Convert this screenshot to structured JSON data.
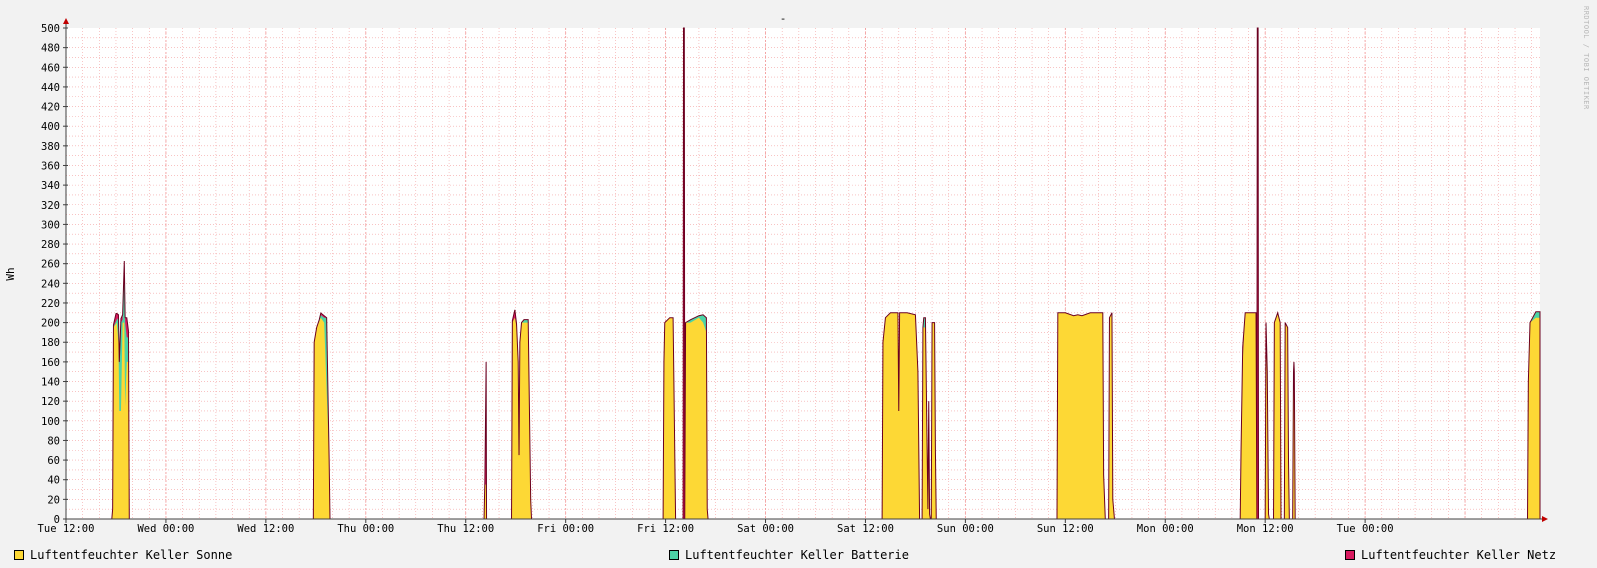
{
  "chart_data": {
    "type": "area",
    "title": "-",
    "ylabel": "Wh",
    "ylim": [
      0,
      500
    ],
    "yticks": [
      0,
      20,
      40,
      60,
      80,
      100,
      120,
      140,
      160,
      180,
      200,
      220,
      240,
      260,
      280,
      300,
      320,
      340,
      360,
      380,
      400,
      420,
      440,
      460,
      480,
      500
    ],
    "x_range_hours": [
      0,
      177
    ],
    "x_tick_labels": [
      "Tue 12:00",
      "Wed 00:00",
      "Wed 12:00",
      "Thu 00:00",
      "Thu 12:00",
      "Fri 00:00",
      "Fri 12:00",
      "Sat 00:00",
      "Sat 12:00",
      "Sun 00:00",
      "Sun 12:00",
      "Mon 00:00",
      "Mon 12:00",
      "Tue 00:00"
    ],
    "grid": true,
    "legend_position": "bottom",
    "stacked": true,
    "series": [
      {
        "name": "Luftentfeuchter Keller Sonne",
        "color": "#fdd835",
        "points": [
          [
            5.5,
            0
          ],
          [
            5.6,
            10
          ],
          [
            5.7,
            195
          ],
          [
            6.1,
            200
          ],
          [
            6.3,
            180
          ],
          [
            6.4,
            110
          ],
          [
            6.6,
            110
          ],
          [
            6.8,
            200
          ],
          [
            7.0,
            200
          ],
          [
            7.1,
            115
          ],
          [
            7.3,
            160
          ],
          [
            7.5,
            160
          ],
          [
            7.6,
            0
          ],
          [
            29.7,
            0
          ],
          [
            29.8,
            180
          ],
          [
            30.1,
            195
          ],
          [
            30.6,
            205
          ],
          [
            31.0,
            200
          ],
          [
            31.3,
            130
          ],
          [
            31.6,
            60
          ],
          [
            31.7,
            0
          ],
          [
            50.2,
            0
          ],
          [
            50.3,
            35
          ],
          [
            50.45,
            35
          ],
          [
            50.5,
            0
          ],
          [
            53.5,
            0
          ],
          [
            53.6,
            200
          ],
          [
            53.9,
            205
          ],
          [
            54.1,
            195
          ],
          [
            54.3,
            160
          ],
          [
            54.4,
            65
          ],
          [
            54.5,
            180
          ],
          [
            54.7,
            200
          ],
          [
            55.5,
            200
          ],
          [
            55.8,
            20
          ],
          [
            55.9,
            0
          ],
          [
            71.7,
            0
          ],
          [
            71.8,
            160
          ],
          [
            71.9,
            200
          ],
          [
            72.5,
            205
          ],
          [
            72.9,
            205
          ],
          [
            73.2,
            0
          ],
          [
            74.3,
            0
          ],
          [
            74.4,
            200
          ],
          [
            75.0,
            200
          ],
          [
            76.0,
            205
          ],
          [
            76.5,
            200
          ],
          [
            76.9,
            190
          ],
          [
            77.0,
            10
          ],
          [
            77.1,
            0
          ],
          [
            98.0,
            0
          ],
          [
            98.1,
            180
          ],
          [
            98.4,
            205
          ],
          [
            99.0,
            210
          ],
          [
            99.9,
            210
          ],
          [
            100.0,
            110
          ],
          [
            100.1,
            210
          ],
          [
            101.0,
            210
          ],
          [
            102.0,
            208
          ],
          [
            102.3,
            150
          ],
          [
            102.5,
            0
          ],
          [
            102.8,
            0
          ],
          [
            102.9,
            195
          ],
          [
            103.2,
            195
          ],
          [
            103.5,
            10
          ],
          [
            103.6,
            120
          ],
          [
            103.7,
            5
          ],
          [
            103.8,
            0
          ],
          [
            103.9,
            0
          ],
          [
            104.0,
            200
          ],
          [
            104.3,
            200
          ],
          [
            104.4,
            70
          ],
          [
            104.5,
            0
          ],
          [
            119.0,
            0
          ],
          [
            119.1,
            210
          ],
          [
            120.0,
            210
          ],
          [
            121.0,
            207
          ],
          [
            121.5,
            208
          ],
          [
            122.0,
            207
          ],
          [
            123.0,
            210
          ],
          [
            124.0,
            210
          ],
          [
            124.5,
            210
          ],
          [
            124.6,
            45
          ],
          [
            124.8,
            0
          ],
          [
            125.2,
            0
          ],
          [
            125.3,
            205
          ],
          [
            125.6,
            210
          ],
          [
            125.7,
            20
          ],
          [
            125.9,
            0
          ],
          [
            141.0,
            0
          ],
          [
            141.1,
            70
          ],
          [
            141.3,
            160
          ],
          [
            141.6,
            210
          ],
          [
            142.5,
            210
          ],
          [
            142.9,
            210
          ],
          [
            143.0,
            0
          ],
          [
            144.0,
            0
          ],
          [
            144.1,
            200
          ],
          [
            144.25,
            150
          ],
          [
            144.4,
            5
          ],
          [
            144.5,
            0
          ],
          [
            145.0,
            0
          ],
          [
            145.1,
            200
          ],
          [
            145.5,
            210
          ],
          [
            145.8,
            200
          ],
          [
            145.9,
            0
          ],
          [
            146.3,
            0
          ],
          [
            146.4,
            200
          ],
          [
            146.7,
            195
          ],
          [
            146.8,
            60
          ],
          [
            146.9,
            0
          ],
          [
            147.3,
            0
          ],
          [
            147.4,
            150
          ],
          [
            147.5,
            140
          ],
          [
            147.6,
            0
          ],
          [
            175.5,
            0
          ],
          [
            175.6,
            140
          ],
          [
            175.8,
            200
          ],
          [
            176.5,
            205
          ],
          [
            177,
            205
          ]
        ]
      },
      {
        "name": "Luftentfeuchter Keller Batterie",
        "color": "#4cd3a6",
        "points": [
          [
            5.6,
            0
          ],
          [
            6.1,
            3
          ],
          [
            6.3,
            25
          ],
          [
            6.6,
            90
          ],
          [
            6.8,
            3
          ],
          [
            7.1,
            85
          ],
          [
            7.3,
            25
          ],
          [
            7.5,
            25
          ],
          [
            7.6,
            0
          ],
          [
            30.1,
            0
          ],
          [
            31.0,
            5
          ],
          [
            31.3,
            75
          ],
          [
            31.6,
            0
          ],
          [
            54.7,
            0
          ],
          [
            55.0,
            3
          ],
          [
            55.5,
            3
          ],
          [
            55.8,
            0
          ],
          [
            74.4,
            0
          ],
          [
            75.0,
            3
          ],
          [
            76.0,
            2
          ],
          [
            76.5,
            8
          ],
          [
            76.9,
            15
          ],
          [
            77.0,
            0
          ],
          [
            102.9,
            0
          ],
          [
            103.0,
            10
          ],
          [
            103.2,
            10
          ],
          [
            103.5,
            0
          ],
          [
            175.8,
            0
          ],
          [
            176.5,
            6
          ],
          [
            177,
            6
          ]
        ]
      },
      {
        "name": "Luftentfeuchter Keller Netz",
        "color": "#d81b60",
        "points": [
          [
            5.6,
            0
          ],
          [
            6.0,
            8
          ],
          [
            6.3,
            3
          ],
          [
            6.8,
            5
          ],
          [
            7.1,
            5
          ],
          [
            7.3,
            20
          ],
          [
            7.6,
            0
          ],
          [
            30.4,
            0
          ],
          [
            30.6,
            2
          ],
          [
            31.0,
            2
          ],
          [
            31.3,
            0
          ],
          [
            50.2,
            0
          ],
          [
            50.3,
            5
          ],
          [
            50.45,
            125
          ],
          [
            50.5,
            0
          ],
          [
            53.5,
            0
          ],
          [
            53.9,
            8
          ],
          [
            54.3,
            0
          ],
          [
            74.1,
            0
          ],
          [
            74.15,
            500
          ],
          [
            74.25,
            500
          ],
          [
            74.3,
            0
          ],
          [
            141.1,
            0
          ],
          [
            141.3,
            15
          ],
          [
            141.6,
            0
          ],
          [
            142.9,
            0
          ],
          [
            143.0,
            0
          ],
          [
            143.05,
            500
          ],
          [
            143.15,
            500
          ],
          [
            143.2,
            0
          ],
          [
            147.4,
            0
          ],
          [
            147.45,
            15
          ],
          [
            147.6,
            0
          ]
        ]
      }
    ]
  },
  "legend": [
    {
      "label": "Luftentfeuchter Keller Sonne",
      "color": "#fdd835"
    },
    {
      "label": "Luftentfeuchter Keller Batterie",
      "color": "#4cd3a6"
    },
    {
      "label": "Luftentfeuchter Keller Netz",
      "color": "#d81b60"
    }
  ],
  "watermark": "RRDTOOL / TOBI OETIKER",
  "colors": {
    "background": "#f2f2f2",
    "plot_bg": "#ffffff",
    "grid": "#f3a0a0",
    "axis": "#404040",
    "arrow": "#c00000",
    "outline": "#6b0020"
  }
}
